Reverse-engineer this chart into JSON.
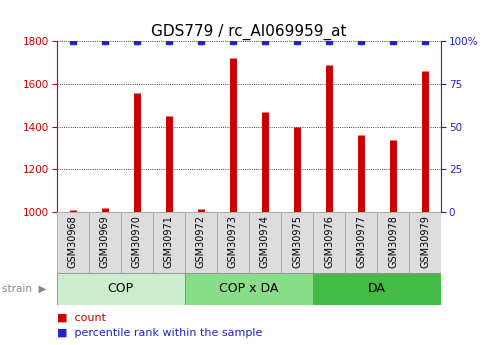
{
  "title": "GDS779 / rc_AI069959_at",
  "samples": [
    "GSM30968",
    "GSM30969",
    "GSM30970",
    "GSM30971",
    "GSM30972",
    "GSM30973",
    "GSM30974",
    "GSM30975",
    "GSM30976",
    "GSM30977",
    "GSM30978",
    "GSM30979"
  ],
  "counts": [
    1010,
    1020,
    1560,
    1450,
    1015,
    1720,
    1470,
    1400,
    1690,
    1360,
    1340,
    1660
  ],
  "percentiles": [
    100,
    100,
    100,
    100,
    100,
    100,
    100,
    100,
    100,
    100,
    100,
    100
  ],
  "ylim_left": [
    1000,
    1800
  ],
  "ylim_right": [
    0,
    100
  ],
  "yticks_left": [
    1000,
    1200,
    1400,
    1600,
    1800
  ],
  "yticks_right": [
    0,
    25,
    50,
    75,
    100
  ],
  "ytick_labels_right": [
    "0",
    "25",
    "50",
    "75",
    "100%"
  ],
  "bar_color": "#cc0000",
  "dot_color": "#2222cc",
  "groups": [
    {
      "label": "COP",
      "start": 0,
      "end": 3,
      "color": "#cceecc"
    },
    {
      "label": "COP x DA",
      "start": 4,
      "end": 7,
      "color": "#88dd88"
    },
    {
      "label": "DA",
      "start": 8,
      "end": 11,
      "color": "#44bb44"
    }
  ],
  "strain_label": "strain",
  "legend_count_label": "count",
  "legend_pct_label": "percentile rank within the sample",
  "background_plot": "#ffffff",
  "background_fig": "#ffffff",
  "xlabel_box_color": "#dddddd",
  "xlabel_box_edge": "#aaaaaa",
  "title_fontsize": 11,
  "tick_fontsize": 7.5,
  "group_fontsize": 9,
  "sample_fontsize": 7
}
